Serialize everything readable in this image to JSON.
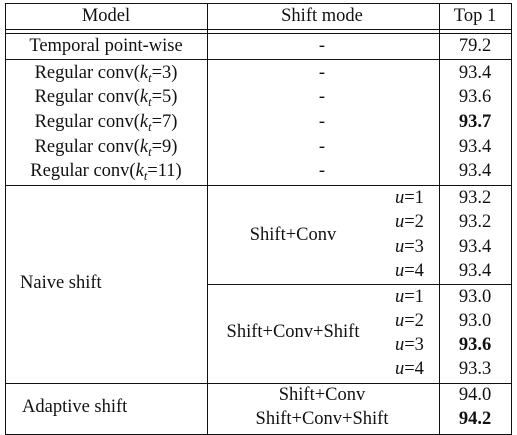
{
  "header": {
    "model": "Model",
    "shift_mode": "Shift mode",
    "top1": "Top 1"
  },
  "rows": [
    {
      "model": "Temporal point-wise",
      "mode": "-",
      "top1": "79.2"
    },
    {
      "model_pre": "Regular conv(",
      "k": "k",
      "t": "t",
      "model_post": "=3)",
      "mode": "-",
      "top1": "93.4"
    },
    {
      "model_pre": "Regular conv(",
      "k": "k",
      "t": "t",
      "model_post": "=5)",
      "mode": "-",
      "top1": "93.6"
    },
    {
      "model_pre": "Regular conv(",
      "k": "k",
      "t": "t",
      "model_post": "=7)",
      "mode": "-",
      "top1": "93.7"
    },
    {
      "model_pre": "Regular conv(",
      "k": "k",
      "t": "t",
      "model_post": "=9)",
      "mode": "-",
      "top1": "93.4"
    },
    {
      "model_pre": "Regular conv(",
      "k": "k",
      "t": "t",
      "model_post": "=11)",
      "mode": "-",
      "top1": "93.4"
    }
  ],
  "naive": {
    "model": "Naive shift",
    "groups": [
      {
        "mode": "Shift+Conv",
        "items": [
          {
            "u": "u",
            "val": "=1",
            "top1": "93.2"
          },
          {
            "u": "u",
            "val": "=2",
            "top1": "93.2"
          },
          {
            "u": "u",
            "val": "=3",
            "top1": "93.4"
          },
          {
            "u": "u",
            "val": "=4",
            "top1": "93.4"
          }
        ]
      },
      {
        "mode": "Shift+Conv+Shift",
        "items": [
          {
            "u": "u",
            "val": "=1",
            "top1": "93.0"
          },
          {
            "u": "u",
            "val": "=2",
            "top1": "93.0"
          },
          {
            "u": "u",
            "val": "=3",
            "top1": "93.6"
          },
          {
            "u": "u",
            "val": "=4",
            "top1": "93.3"
          }
        ]
      }
    ]
  },
  "adaptive": {
    "model": "Adaptive shift",
    "rows": [
      {
        "mode": "Shift+Conv",
        "top1": "94.0"
      },
      {
        "mode": "Shift+Conv+Shift",
        "top1": "94.2"
      }
    ]
  }
}
